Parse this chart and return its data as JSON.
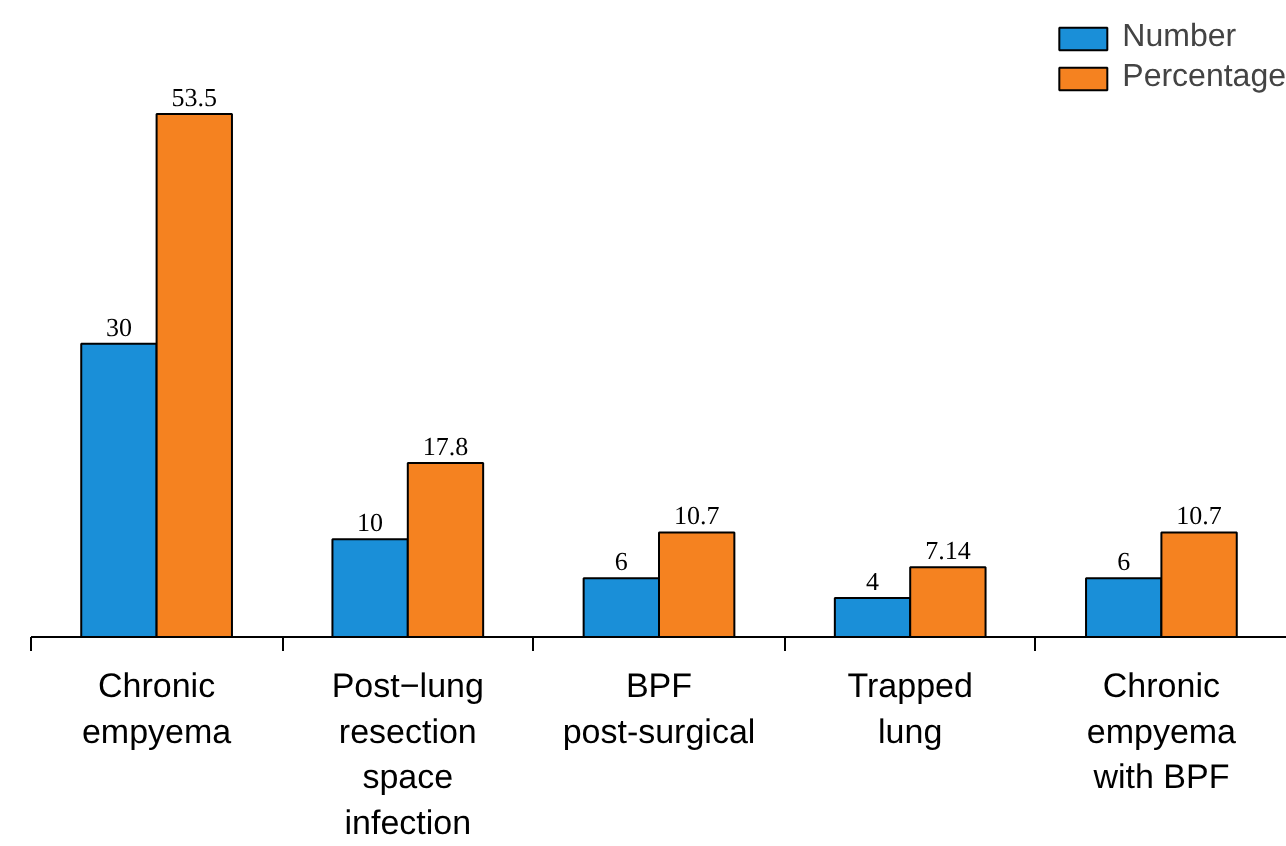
{
  "chart_data": {
    "type": "bar",
    "categories": [
      "Chronic\nempyema",
      "Post−lung\nresection\nspace\ninfection",
      "BPF\npost-surgical",
      "Trapped\nlung",
      "Chronic\nempyema\nwith BPF"
    ],
    "series": [
      {
        "name": "Number",
        "color": "#1a8fd8",
        "values": [
          30,
          10,
          6,
          4,
          6
        ]
      },
      {
        "name": "Percentage",
        "color": "#f58220",
        "values": [
          53.5,
          17.8,
          10.7,
          7.14,
          10.7
        ]
      }
    ],
    "ylim": [
      0,
      63
    ],
    "data_labels": true,
    "legend": "top right",
    "grid": false
  }
}
